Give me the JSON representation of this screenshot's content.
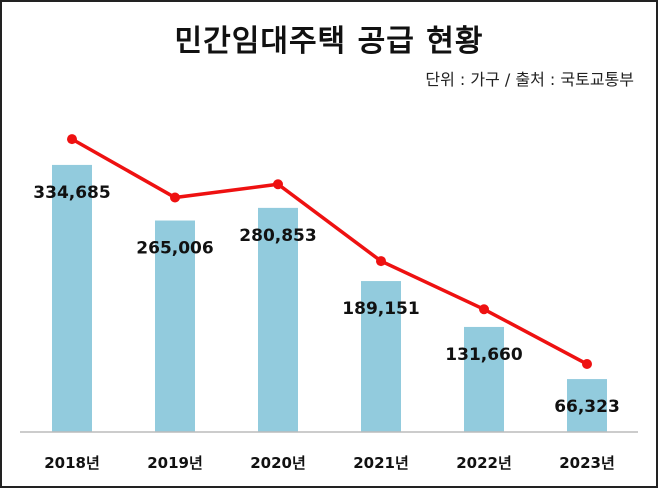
{
  "chart_data": {
    "type": "bar+line",
    "title": "민간임대주택 공급 현황",
    "subtitle": "단위 : 가구 / 출처 : 국토교통부",
    "categories": [
      "2018년",
      "2019년",
      "2020년",
      "2021년",
      "2022년",
      "2023년"
    ],
    "values": [
      334685,
      265006,
      280853,
      189151,
      131660,
      66323
    ],
    "value_labels": [
      "334,685",
      "265,006",
      "280,853",
      "189,151",
      "131,660",
      "66,323"
    ],
    "colors": {
      "bar": "#92CBDD",
      "line": "#EE1111",
      "axis": "#BBBBBB",
      "text": "#111111"
    },
    "grid": false,
    "legend": "none"
  }
}
